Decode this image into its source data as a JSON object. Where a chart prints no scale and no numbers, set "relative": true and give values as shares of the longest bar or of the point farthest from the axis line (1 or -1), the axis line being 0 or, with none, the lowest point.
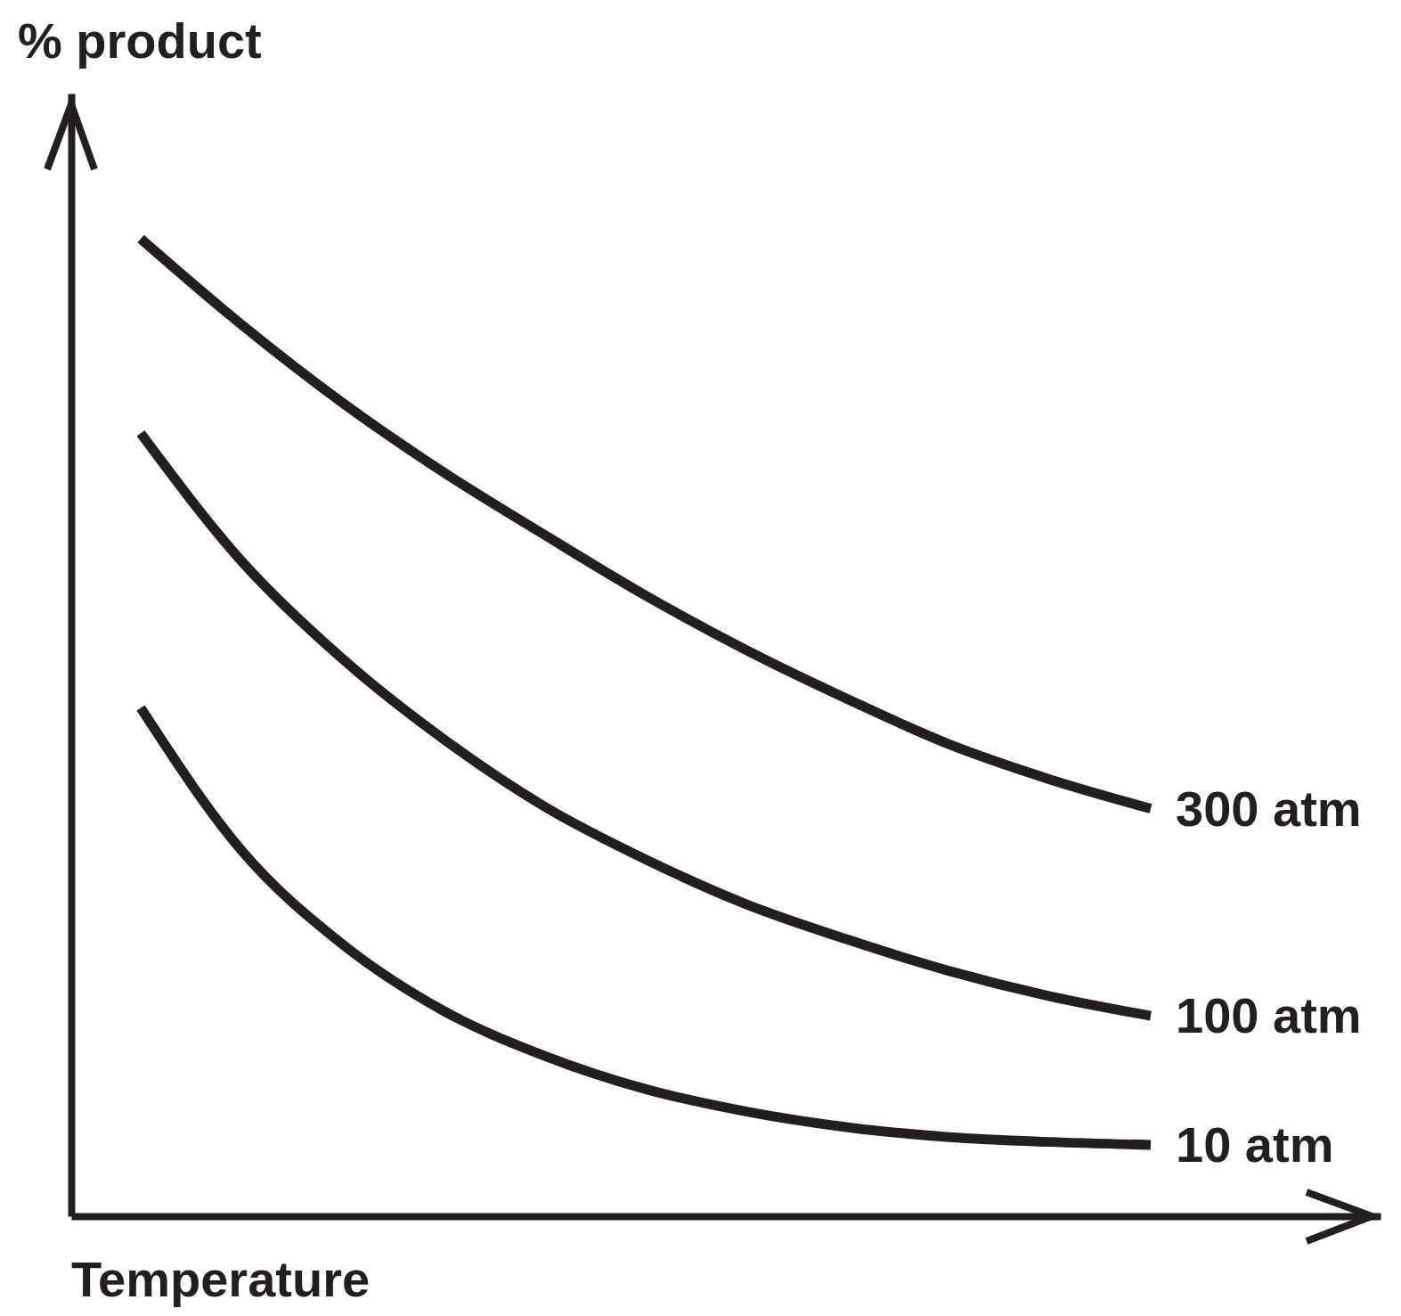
{
  "chart_data": {
    "type": "line",
    "relative": true,
    "xlabel": "Temperature",
    "ylabel": "% product",
    "categories": [
      null,
      null,
      null,
      null,
      null,
      null,
      null,
      null,
      null,
      null,
      null
    ],
    "series": [
      {
        "name": "300 atm",
        "color": "#231f20",
        "values": [
          1,
          0.912,
          0.832,
          0.761,
          0.697,
          0.635,
          0.579,
          0.529,
          0.483,
          0.447,
          0.417
        ]
      },
      {
        "name": "100 atm",
        "color": "#231f20",
        "values": [
          0.801,
          0.67,
          0.57,
          0.488,
          0.419,
          0.365,
          0.319,
          0.283,
          0.251,
          0.225,
          0.205
        ]
      },
      {
        "name": "10 atm",
        "color": "#231f20",
        "values": [
          0.52,
          0.374,
          0.278,
          0.21,
          0.164,
          0.13,
          0.107,
          0.091,
          0.081,
          0.076,
          0.073
        ]
      }
    ],
    "marker": "none",
    "line_style": "solid",
    "grid": false
  }
}
